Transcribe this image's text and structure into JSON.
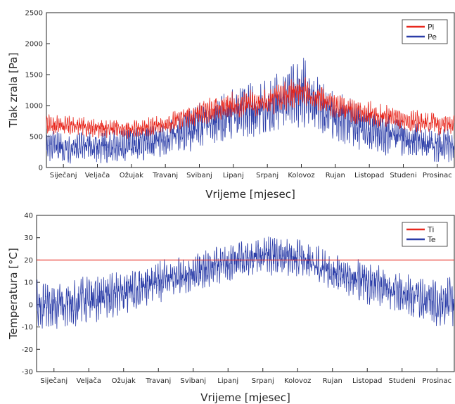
{
  "chart_data": [
    {
      "type": "line",
      "title": "",
      "xlabel": "Vrijeme [mjesec]",
      "ylabel": "Tlak zrala [Pa]",
      "ylim": [
        0,
        2500
      ],
      "yticks": [
        "0",
        "500",
        "1000",
        "1500",
        "2000",
        "2500"
      ],
      "categories": [
        "Siječanj",
        "Veljača",
        "Ožujak",
        "Travanj",
        "Svibanj",
        "Lipanj",
        "Srpanj",
        "Kolovoz",
        "Rujan",
        "Listopad",
        "Studeni",
        "Prosinac"
      ],
      "grid": false,
      "legend_position": "top-right",
      "series": [
        {
          "name": "Pi",
          "color": "#e8281e",
          "monthly_mean": [
            680,
            640,
            610,
            700,
            880,
            1010,
            1060,
            1250,
            1000,
            870,
            760,
            700
          ],
          "monthly_range": [
            160,
            150,
            140,
            150,
            180,
            200,
            200,
            250,
            200,
            200,
            180,
            170
          ]
        },
        {
          "name": "Pe",
          "color": "#2b3da8",
          "monthly_mean": [
            330,
            320,
            370,
            450,
            680,
            900,
            950,
            1250,
            820,
            600,
            460,
            360
          ],
          "monthly_range": [
            230,
            230,
            250,
            280,
            330,
            400,
            420,
            550,
            380,
            320,
            280,
            250
          ]
        }
      ]
    },
    {
      "type": "line",
      "title": "",
      "xlabel": "Vrijeme [mjesec]",
      "ylabel": "Temperatura [°C]",
      "ylim": [
        -30,
        40
      ],
      "yticks": [
        "-30",
        "-20",
        "-10",
        "0",
        "10",
        "20",
        "30",
        "40"
      ],
      "categories": [
        "Siječanj",
        "Veljača",
        "Ožujak",
        "Travanj",
        "Svibanj",
        "Lipanj",
        "Srpanj",
        "Kolovoz",
        "Rujan",
        "Listopad",
        "Studeni",
        "Prosinac"
      ],
      "grid": false,
      "legend_position": "top-right",
      "series": [
        {
          "name": "Ti",
          "color": "#e8281e",
          "values": "constant",
          "value": 20
        },
        {
          "name": "Te",
          "color": "#2b3da8",
          "monthly_mean": [
            0,
            2,
            5,
            10,
            14,
            19,
            22,
            21,
            15,
            10,
            5,
            1
          ],
          "monthly_range": [
            10,
            10,
            9,
            9,
            8,
            8,
            8,
            8,
            8,
            9,
            9,
            10
          ]
        }
      ]
    }
  ]
}
